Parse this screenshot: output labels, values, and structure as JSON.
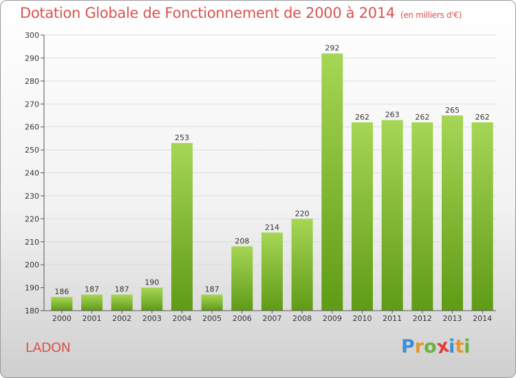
{
  "header": {
    "title": "Dotation Globale de Fonctionnement de 2000 à 2014",
    "unit": "(en milliers d'€)"
  },
  "footer": {
    "place": "LADON",
    "logo_text": "Proxiti",
    "logo_colors": [
      "#3a8fd6",
      "#e8962d",
      "#6cb33e",
      "#e23b3b",
      "#3a8fd6",
      "#e8962d",
      "#6cb33e"
    ]
  },
  "colors": {
    "bar_top": "#a6d655",
    "bar_bottom": "#5f9b16",
    "title": "#d9534f"
  },
  "chart_data": {
    "type": "bar",
    "categories": [
      "2000",
      "2001",
      "2002",
      "2003",
      "2004",
      "2005",
      "2006",
      "2007",
      "2008",
      "2009",
      "2010",
      "2011",
      "2012",
      "2013",
      "2014"
    ],
    "values": [
      186,
      187,
      187,
      190,
      253,
      187,
      208,
      214,
      220,
      292,
      262,
      263,
      262,
      265,
      262
    ],
    "ylim": [
      180,
      300
    ],
    "yticks": [
      180,
      190,
      200,
      210,
      220,
      230,
      240,
      250,
      260,
      270,
      280,
      290,
      300
    ],
    "grid": true,
    "title": "Dotation Globale de Fonctionnement de 2000 à 2014",
    "xlabel": "",
    "ylabel": ""
  }
}
